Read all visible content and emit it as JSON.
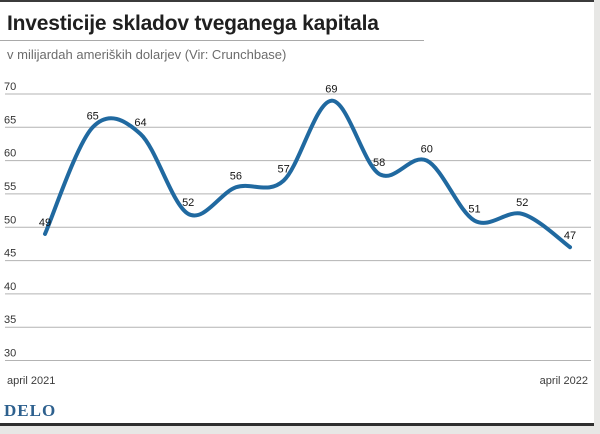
{
  "branding": {
    "logo_text": "DELO"
  },
  "chart_data": {
    "type": "line",
    "title": "Investicije skladov tveganega kapitala",
    "subtitle": "v milijardah ameriških dolarjev (Vir: Crunchbase)",
    "source": "Crunchbase",
    "values": [
      49,
      65,
      64,
      52,
      56,
      57,
      69,
      58,
      60,
      51,
      52,
      47
    ],
    "point_labels": [
      "49",
      "65",
      "64",
      "52",
      "56",
      "57",
      "69",
      "58",
      "60",
      "51",
      "52",
      "47"
    ],
    "x_start_label": "april 2021",
    "x_end_label": "april 2022",
    "y_ticks": [
      70,
      65,
      60,
      55,
      50,
      45,
      40,
      35,
      30
    ],
    "ylim": [
      30,
      70
    ],
    "grid": true,
    "legend": "none",
    "line_color": "#2069a0",
    "grid_color": "#b3b3b3",
    "label_color": "#141414"
  }
}
